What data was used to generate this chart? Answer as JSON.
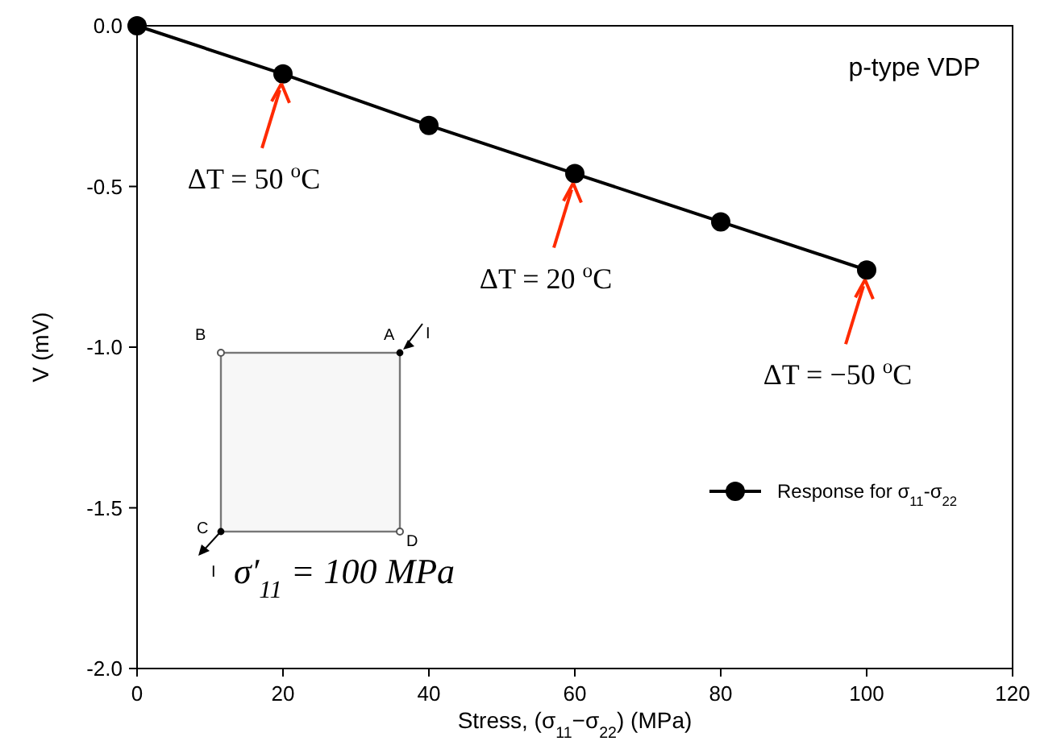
{
  "chart_data": {
    "type": "line",
    "xlabel": "Stress, (σ$_{11}$−σ$_{22}$) (MPa)",
    "ylabel": "V (mV)",
    "x": [
      0,
      20,
      40,
      60,
      80,
      100
    ],
    "series": [
      {
        "name": "Response for σ$_{11}$-σ$_{22}$",
        "color": "#000000",
        "values": [
          0,
          -0.15,
          -0.31,
          -0.46,
          -0.61,
          -0.76
        ]
      }
    ],
    "xlim": [
      0,
      120
    ],
    "xticks": [
      0,
      20,
      40,
      60,
      80,
      100,
      120
    ],
    "ylim": [
      -2.0,
      0.0
    ],
    "yticks": [
      {
        "value": 0,
        "label": "0.0"
      },
      {
        "value": -0.5,
        "label": "-0.5"
      },
      {
        "value": -1.0,
        "label": "-1.0"
      },
      {
        "value": -1.5,
        "label": "-1.5"
      },
      {
        "value": -2.0,
        "label": "-2.0"
      }
    ],
    "marker": "circle",
    "line_style": "solid",
    "legend": "right",
    "grid": false,
    "annotations": [
      "p-type VDP",
      {
        "text": "ΔT = 50 $^{o}$C",
        "x": 20,
        "y": -0.15
      },
      {
        "text": "ΔT = 20 $^{o}$C",
        "x": 60,
        "y": -0.46
      },
      {
        "text": "ΔT = −50 $^{o}$C",
        "x": 100,
        "y": -0.76
      },
      "B",
      "A",
      "I",
      "C",
      "D",
      "I",
      "σ′$_{11}$ = 100 MPa"
    ]
  }
}
